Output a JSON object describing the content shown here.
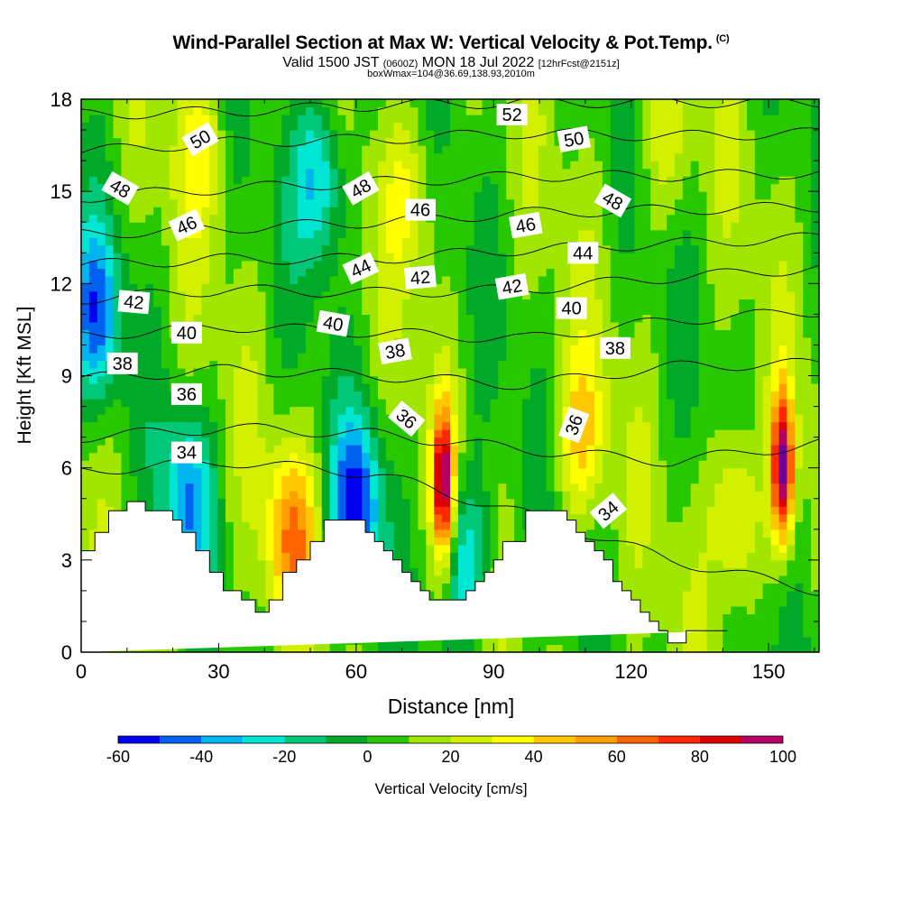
{
  "header": {
    "title": "Wind-Parallel Section at Max W: Vertical Velocity & Pot.Temp.",
    "copyright": "(C)",
    "valid_prefix": "Valid 1500 JST",
    "valid_utc": "(0600Z)",
    "valid_date": "MON 18 Jul 2022",
    "forecast": "[12hrFcst@2151z]",
    "box_info": "boxWmax=104@36.69,138.93,2010m"
  },
  "chart_data": {
    "type": "heatmap",
    "xlabel": "Distance [nm]",
    "ylabel": "Height [Kft MSL]",
    "xlim": [
      0,
      161
    ],
    "ylim": [
      0,
      18
    ],
    "x_ticks": [
      0,
      30,
      60,
      90,
      120,
      150
    ],
    "x_tick_labels": [
      "0",
      "30",
      "60",
      "90",
      "120",
      "150"
    ],
    "y_ticks": [
      0,
      3,
      6,
      9,
      12,
      15,
      18
    ],
    "y_tick_labels": [
      "0",
      "3",
      "6",
      "9",
      "12",
      "15",
      "18"
    ],
    "colorbar": {
      "label": "Vertical Velocity [cm/s]",
      "ticks": [
        -60,
        -40,
        -20,
        0,
        20,
        40,
        60,
        80,
        100
      ],
      "tick_labels": [
        "-60",
        "-40",
        "-20",
        "0",
        "20",
        "40",
        "60",
        "80",
        "100"
      ],
      "levels": [
        -60,
        -50,
        -40,
        -30,
        -20,
        -10,
        0,
        10,
        20,
        30,
        40,
        50,
        60,
        70,
        80,
        90,
        100
      ],
      "colors": [
        "#0000f0",
        "#0060f0",
        "#00b4f0",
        "#00e6d2",
        "#00c878",
        "#00aa28",
        "#28c800",
        "#a0e600",
        "#d2f000",
        "#ffff00",
        "#ffc800",
        "#ffa000",
        "#ff6400",
        "#ff2800",
        "#dc0000",
        "#b40064",
        "#6e00a0"
      ]
    },
    "terrain_surface": {
      "x": [
        0,
        3,
        3,
        6,
        6,
        10,
        10,
        14,
        14,
        20,
        20,
        22,
        22,
        25,
        25,
        28,
        28,
        29,
        29,
        31,
        31,
        35,
        35,
        38,
        38,
        41,
        41,
        44,
        44,
        47,
        47,
        50,
        50,
        53,
        53,
        56,
        56,
        62,
        62,
        64,
        64,
        66,
        66,
        68,
        68,
        70,
        70,
        72,
        72,
        74,
        74,
        76,
        76,
        78,
        78,
        84,
        84,
        86,
        86,
        88,
        88,
        90,
        90,
        92,
        92,
        97,
        97,
        104,
        104,
        106,
        106,
        108,
        108,
        110,
        110,
        112,
        112,
        114,
        114,
        116,
        116,
        118,
        118,
        120,
        120,
        122,
        122,
        124,
        124,
        126,
        126,
        128,
        128,
        129,
        129,
        132,
        132,
        138,
        138,
        141,
        141,
        161
      ],
      "y": [
        3.3,
        3.3,
        3.9,
        3.9,
        4.6,
        4.6,
        4.9,
        4.9,
        4.6,
        4.6,
        4.3,
        4.3,
        3.9,
        3.9,
        3.3,
        3.3,
        2.6,
        2.6,
        2.6,
        2.6,
        2.0,
        2.0,
        1.7,
        1.7,
        1.3,
        1.3,
        1.7,
        1.7,
        2.6,
        2.6,
        3.0,
        3.0,
        3.6,
        3.6,
        4.3,
        4.3,
        4.3,
        4.3,
        3.9,
        3.9,
        3.6,
        3.6,
        3.3,
        3.3,
        3.0,
        3.0,
        2.6,
        2.6,
        2.3,
        2.3,
        2.0,
        2.0,
        1.7,
        1.7,
        1.7,
        1.7,
        2.0,
        2.0,
        2.3,
        2.3,
        2.6,
        2.6,
        3.0,
        3.0,
        3.6,
        3.6,
        4.6,
        4.6,
        4.6,
        4.6,
        4.3,
        4.3,
        3.9,
        3.9,
        3.6,
        3.6,
        3.3,
        3.3,
        3.0,
        3.0,
        2.3,
        2.3,
        2.0,
        2.0,
        1.7,
        1.7,
        1.3,
        1.3,
        1.0,
        1.0,
        0.7,
        0.7,
        0.3,
        0.3,
        0.3,
        0.3,
        0.7,
        0.7,
        0.7,
        0.7,
        0.7
      ]
    },
    "vertical_velocity_features": [
      {
        "x": 79,
        "y": 5.5,
        "value": 95
      },
      {
        "x": 153,
        "y": 6.0,
        "value": 100
      },
      {
        "x": 143,
        "y": 4.5,
        "value": 45
      },
      {
        "x": 109,
        "y": 7.0,
        "value": 40
      },
      {
        "x": 46,
        "y": 3.8,
        "value": 55
      },
      {
        "x": 26,
        "y": 16.5,
        "value": 30
      },
      {
        "x": 72,
        "y": 15.0,
        "value": 30
      },
      {
        "x": 127,
        "y": 16.5,
        "value": 25
      },
      {
        "x": 60,
        "y": 4.8,
        "value": -50
      },
      {
        "x": 52,
        "y": 15.5,
        "value": -35
      },
      {
        "x": 3,
        "y": 11.0,
        "value": -40
      },
      {
        "x": 23,
        "y": 5.0,
        "value": -35
      },
      {
        "x": 84,
        "y": 3.0,
        "value": -30
      }
    ],
    "theta_contours": [
      {
        "level": 34,
        "heights": [
          5.9,
          6.2,
          5.8,
          4.5,
          3.0,
          2.0
        ]
      },
      {
        "level": 36,
        "heights": [
          7.0,
          7.3,
          7.1,
          6.6,
          6.2,
          6.8
        ]
      },
      {
        "level": 38,
        "heights": [
          8.9,
          9.2,
          9.0,
          8.7,
          9.3,
          9.4
        ]
      },
      {
        "level": 40,
        "heights": [
          10.3,
          10.6,
          10.4,
          10.2,
          10.8,
          11.1
        ]
      },
      {
        "level": 42,
        "heights": [
          11.5,
          11.8,
          11.7,
          11.8,
          12.2,
          12.5
        ]
      },
      {
        "level": 44,
        "heights": [
          12.6,
          12.8,
          12.8,
          13.1,
          13.3,
          13.5
        ]
      },
      {
        "level": 46,
        "heights": [
          13.6,
          13.8,
          14.0,
          14.3,
          14.4,
          14.5
        ]
      },
      {
        "level": 48,
        "heights": [
          14.8,
          15.1,
          15.3,
          15.5,
          15.5,
          15.6
        ]
      },
      {
        "level": 50,
        "heights": [
          16.3,
          16.6,
          16.7,
          16.9,
          16.8,
          16.9
        ]
      },
      {
        "level": 52,
        "heights": [
          17.5,
          17.6,
          17.8,
          17.9,
          17.9,
          17.9
        ]
      }
    ],
    "contour_labels": [
      {
        "text": "50",
        "x": 26,
        "y": 16.7,
        "angle": -30
      },
      {
        "text": "48",
        "x": 8.5,
        "y": 15.1,
        "angle": 30
      },
      {
        "text": "46",
        "x": 23,
        "y": 13.9,
        "angle": -25
      },
      {
        "text": "42",
        "x": 11.5,
        "y": 11.4,
        "angle": 5
      },
      {
        "text": "40",
        "x": 23,
        "y": 10.4,
        "angle": 0
      },
      {
        "text": "38",
        "x": 9,
        "y": 9.4,
        "angle": 0
      },
      {
        "text": "36",
        "x": 23,
        "y": 8.4,
        "angle": 0
      },
      {
        "text": "34",
        "x": 23,
        "y": 6.5,
        "angle": 0
      },
      {
        "text": "48",
        "x": 61,
        "y": 15.1,
        "angle": -30
      },
      {
        "text": "46",
        "x": 74,
        "y": 14.4,
        "angle": 0
      },
      {
        "text": "44",
        "x": 61,
        "y": 12.5,
        "angle": -25
      },
      {
        "text": "42",
        "x": 74,
        "y": 12.2,
        "angle": -5
      },
      {
        "text": "40",
        "x": 55,
        "y": 10.7,
        "angle": 10
      },
      {
        "text": "38",
        "x": 68.5,
        "y": 9.8,
        "angle": -10
      },
      {
        "text": "36",
        "x": 71,
        "y": 7.6,
        "angle": 40
      },
      {
        "text": "52",
        "x": 94,
        "y": 17.5,
        "angle": 0
      },
      {
        "text": "50",
        "x": 107.5,
        "y": 16.7,
        "angle": -10
      },
      {
        "text": "48",
        "x": 116,
        "y": 14.7,
        "angle": 30
      },
      {
        "text": "46",
        "x": 97,
        "y": 13.9,
        "angle": -10
      },
      {
        "text": "44",
        "x": 109.5,
        "y": 13.0,
        "angle": 0
      },
      {
        "text": "42",
        "x": 94,
        "y": 11.9,
        "angle": -10
      },
      {
        "text": "40",
        "x": 107,
        "y": 11.2,
        "angle": 0
      },
      {
        "text": "38",
        "x": 116.5,
        "y": 9.9,
        "angle": 0
      },
      {
        "text": "36",
        "x": 107.5,
        "y": 7.4,
        "angle": -70
      },
      {
        "text": "34",
        "x": 115,
        "y": 4.6,
        "angle": -40
      }
    ]
  }
}
